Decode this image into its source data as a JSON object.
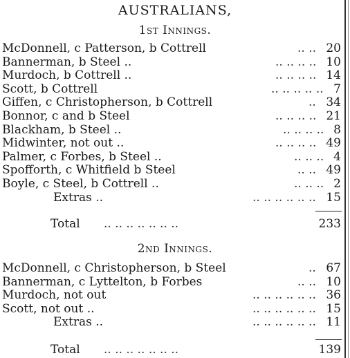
{
  "title": "AUSTRALIANS,",
  "innings1": {
    "heading": "1st Innings.",
    "rows": [
      {
        "name": "McDonnell, c Patterson, b Cottrell",
        "dots": "..    ..",
        "runs": "20"
      },
      {
        "name": "Bannerman, b Steel ..",
        "dots": "..    ..    ..    ..",
        "runs": "10"
      },
      {
        "name": "Murdoch, b Cottrell ..",
        "dots": "..    ..    ..    ..",
        "runs": "14"
      },
      {
        "name": "Scott, b Cottrell",
        "dots": "..    ..    ..    ..    ..",
        "runs": "7"
      },
      {
        "name": "Giffen, c Christopherson, b Cottrell",
        "dots": "..",
        "runs": "34"
      },
      {
        "name": "Bonnor, c and b Steel",
        "dots": "..    ..    ..    ..",
        "runs": "21"
      },
      {
        "name": "Blackham, b Steel ..",
        "dots": "..    ..    ..    ..",
        "runs": "8"
      },
      {
        "name": "Midwinter, not out ..",
        "dots": "..    ..    ..    ..",
        "runs": "49"
      },
      {
        "name": "Palmer, c Forbes, b Steel ..",
        "dots": "..    ..    ..",
        "runs": "4"
      },
      {
        "name": "Spofforth, c Whitfield b Steel",
        "dots": "..    ..",
        "runs": "49"
      },
      {
        "name": "Boyle, c Steel, b Cottrell ..",
        "dots": "..    ..    ..",
        "runs": "2"
      },
      {
        "name": "Extras ..",
        "dots": "..    ..    ..    ..    ..    ..",
        "runs": "15",
        "indent": true
      }
    ],
    "total_label": "Total",
    "total_dots": "..    ..    ..    ..    ..    ..    ..",
    "total": "233"
  },
  "innings2": {
    "heading": "2nd Innings.",
    "rows": [
      {
        "name": "McDonnell, c Christopherson, b Steel",
        "dots": "..",
        "runs": "67"
      },
      {
        "name": "Bannerman, c Lyttelton, b Forbes",
        "dots": "..    ..",
        "runs": "10"
      },
      {
        "name": "Murdoch, not out",
        "dots": "..    ..    ..    ..    ..    ..",
        "runs": "36"
      },
      {
        "name": "Scott, not out ..",
        "dots": "..    ..    ..    ..    ..    ..",
        "runs": "15"
      },
      {
        "name": "Extras ..",
        "dots": "..    ..    ..    ..    ..    ..",
        "runs": "11",
        "indent": true
      }
    ],
    "total_label": "Total",
    "total_dots": "..    ..    ..    ..    ..    ..    ..",
    "total": "139"
  }
}
